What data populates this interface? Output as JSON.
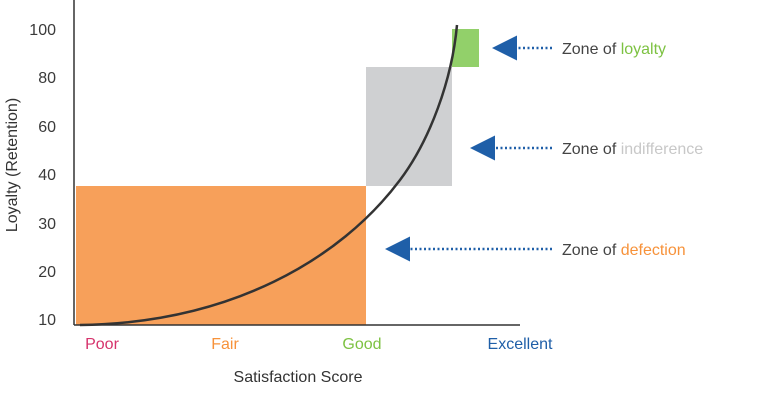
{
  "chart_data": {
    "type": "area",
    "xlabel": "Satisfaction Score",
    "ylabel": "Loyalty (Retention)",
    "y_ticks": [
      "10",
      "20",
      "30",
      "40",
      "60",
      "80",
      "100"
    ],
    "categories": [
      {
        "label": "Poor",
        "color": "#d6336c"
      },
      {
        "label": "Fair",
        "color": "#f7923a"
      },
      {
        "label": "Good",
        "color": "#7dc242"
      },
      {
        "label": "Excellent",
        "color": "#1f5fa8"
      }
    ],
    "zones": [
      {
        "prefix": "Zone of ",
        "word": "defection",
        "color": "#f7a05a",
        "word_color": "#f7923a",
        "arrow_color": "#1f5fa8"
      },
      {
        "prefix": "Zone of ",
        "word": "indifference",
        "color": "#cfd0d2",
        "word_color": "#c8c8c8",
        "arrow_color": "#1f5fa8"
      },
      {
        "prefix": "Zone of ",
        "word": "loyalty",
        "color": "#92d06a",
        "word_color": "#7dc242",
        "arrow_color": "#1f5fa8"
      }
    ],
    "curve": {
      "color": "#333333",
      "shape": "exponential"
    },
    "grid": false,
    "legend": "none"
  }
}
